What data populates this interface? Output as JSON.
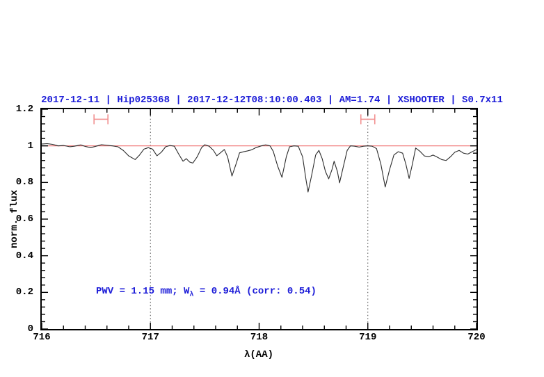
{
  "figure": {
    "title": "2017-12-11 | Hip025368 | 2017-12-12T08:10:00.403 | AM=1.74 | XSHOOTER | S0.7x11",
    "annotation": {
      "prefix": "PWV  =  1.15  mm; W",
      "sub": "λ",
      "suffix": "  =  0.94Å  (corr: 0.54)"
    }
  },
  "colors": {
    "title_blue": "#1c1cd8",
    "annotation_blue": "#1c1cd8",
    "continuum_red": "#f07272",
    "marker_red": "#f29090",
    "spectrum_black": "#2b2b2b",
    "frame_black": "#000000",
    "vline_gray": "#4a4a4a"
  },
  "chart_data": {
    "type": "line",
    "title": "2017-12-11 | Hip025368 | 2017-12-12T08:10:00.403 | AM=1.74 | XSHOOTER | S0.7x11",
    "xlabel": "λ(AA)",
    "ylabel": "norm. flux",
    "xlim": [
      716,
      720
    ],
    "ylim": [
      0,
      1.2
    ],
    "grid": false,
    "legend": "none",
    "x_tick_labels": [
      "716",
      "717",
      "718",
      "719",
      "720"
    ],
    "x_major_ticks": [
      716,
      717,
      718,
      719,
      720
    ],
    "x_minor_step": 0.2,
    "y_tick_labels": [
      "0",
      "0.2",
      "0.4",
      "0.6",
      "0.8",
      "1",
      "1.2"
    ],
    "y_major_ticks": [
      0,
      0.2,
      0.4,
      0.6,
      0.8,
      1,
      1.2
    ],
    "y_minor_step": 0.04,
    "dotted_vlines": [
      717,
      719
    ],
    "continuum_level": 1.0,
    "telluric_markers": [
      {
        "x_center": 716.545,
        "x_halfwidth": 0.064,
        "y": 1.145,
        "cap_halfheight": 0.027
      },
      {
        "x_center": 719.0,
        "x_halfwidth": 0.064,
        "y": 1.145,
        "cap_halfheight": 0.027
      }
    ],
    "series": [
      {
        "name": "observed spectrum",
        "points": [
          [
            716.0,
            1.01
          ],
          [
            716.05,
            1.012
          ],
          [
            716.1,
            1.008
          ],
          [
            716.15,
            1.0
          ],
          [
            716.2,
            1.002
          ],
          [
            716.26,
            0.995
          ],
          [
            716.3,
            0.998
          ],
          [
            716.36,
            1.005
          ],
          [
            716.4,
            0.997
          ],
          [
            716.45,
            0.99
          ],
          [
            716.5,
            0.998
          ],
          [
            716.55,
            1.006
          ],
          [
            716.6,
            1.003
          ],
          [
            716.65,
            1.0
          ],
          [
            716.7,
            0.995
          ],
          [
            716.75,
            0.975
          ],
          [
            716.8,
            0.945
          ],
          [
            716.86,
            0.925
          ],
          [
            716.9,
            0.95
          ],
          [
            716.94,
            0.982
          ],
          [
            716.98,
            0.99
          ],
          [
            717.02,
            0.982
          ],
          [
            717.06,
            0.946
          ],
          [
            717.1,
            0.965
          ],
          [
            717.14,
            0.995
          ],
          [
            717.18,
            1.002
          ],
          [
            717.22,
            0.998
          ],
          [
            717.26,
            0.955
          ],
          [
            717.3,
            0.916
          ],
          [
            717.33,
            0.93
          ],
          [
            717.36,
            0.912
          ],
          [
            717.39,
            0.906
          ],
          [
            717.43,
            0.94
          ],
          [
            717.47,
            0.99
          ],
          [
            717.5,
            1.006
          ],
          [
            717.54,
            0.998
          ],
          [
            717.58,
            0.975
          ],
          [
            717.61,
            0.946
          ],
          [
            717.64,
            0.96
          ],
          [
            717.68,
            0.98
          ],
          [
            717.71,
            0.94
          ],
          [
            717.75,
            0.835
          ],
          [
            717.79,
            0.905
          ],
          [
            717.82,
            0.962
          ],
          [
            717.86,
            0.968
          ],
          [
            717.89,
            0.972
          ],
          [
            717.93,
            0.978
          ],
          [
            717.97,
            0.99
          ],
          [
            718.02,
            1.0
          ],
          [
            718.06,
            1.005
          ],
          [
            718.1,
            1.0
          ],
          [
            718.13,
            0.97
          ],
          [
            718.17,
            0.89
          ],
          [
            718.21,
            0.828
          ],
          [
            718.25,
            0.94
          ],
          [
            718.28,
            0.995
          ],
          [
            718.32,
            1.0
          ],
          [
            718.36,
            0.998
          ],
          [
            718.4,
            0.94
          ],
          [
            718.43,
            0.82
          ],
          [
            718.45,
            0.748
          ],
          [
            718.48,
            0.83
          ],
          [
            718.52,
            0.95
          ],
          [
            718.55,
            0.975
          ],
          [
            718.58,
            0.93
          ],
          [
            718.61,
            0.86
          ],
          [
            718.64,
            0.82
          ],
          [
            718.67,
            0.87
          ],
          [
            718.69,
            0.916
          ],
          [
            718.72,
            0.86
          ],
          [
            718.74,
            0.798
          ],
          [
            718.78,
            0.9
          ],
          [
            718.81,
            0.975
          ],
          [
            718.84,
            1.0
          ],
          [
            718.88,
            0.998
          ],
          [
            718.92,
            0.993
          ],
          [
            718.96,
            0.998
          ],
          [
            719.0,
            1.0
          ],
          [
            719.04,
            0.998
          ],
          [
            719.08,
            0.985
          ],
          [
            719.12,
            0.9
          ],
          [
            719.16,
            0.775
          ],
          [
            719.2,
            0.87
          ],
          [
            719.24,
            0.95
          ],
          [
            719.28,
            0.968
          ],
          [
            719.32,
            0.96
          ],
          [
            719.35,
            0.9
          ],
          [
            719.38,
            0.822
          ],
          [
            719.41,
            0.9
          ],
          [
            719.44,
            0.988
          ],
          [
            719.48,
            0.97
          ],
          [
            719.52,
            0.945
          ],
          [
            719.56,
            0.94
          ],
          [
            719.6,
            0.95
          ],
          [
            719.64,
            0.938
          ],
          [
            719.68,
            0.925
          ],
          [
            719.72,
            0.92
          ],
          [
            719.76,
            0.94
          ],
          [
            719.8,
            0.965
          ],
          [
            719.84,
            0.975
          ],
          [
            719.88,
            0.96
          ],
          [
            719.92,
            0.955
          ],
          [
            719.96,
            0.968
          ],
          [
            720.0,
            0.98
          ]
        ]
      }
    ]
  }
}
